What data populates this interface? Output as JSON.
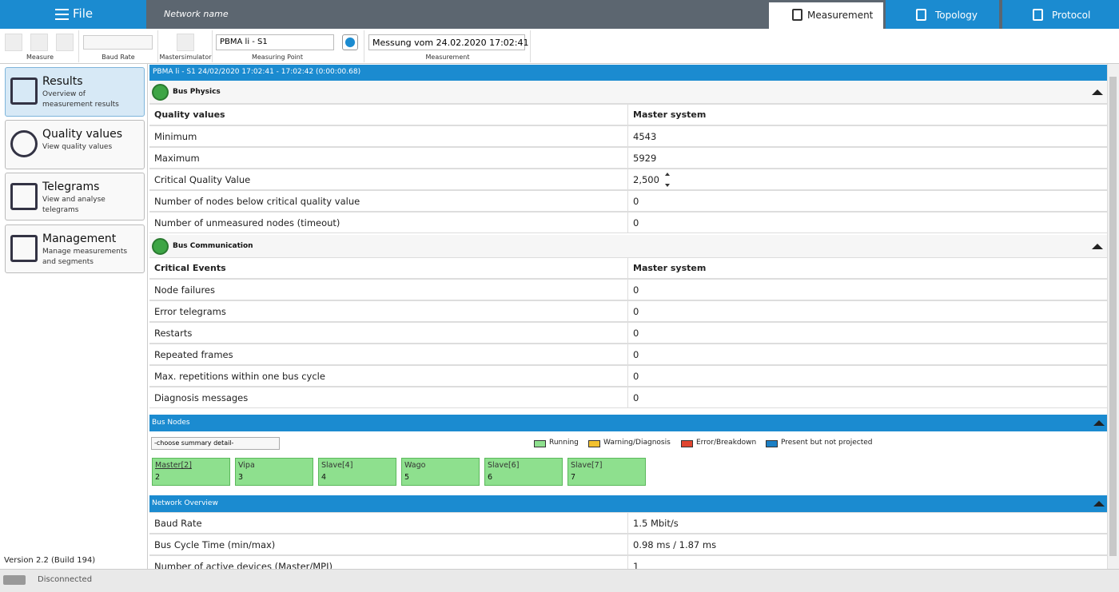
{
  "menu": {
    "file": "File",
    "network_name": "Network name"
  },
  "tabs": [
    "Measurement",
    "Topology",
    "Protocol"
  ],
  "toolbar": {
    "measure": "Measure",
    "baud_rate": "Baud Rate",
    "mastersimulator": "Mastersimulator",
    "measuring_point_value": "PBMA li - S1",
    "measuring_point": "Measuring Point",
    "measurement_value": "Messung vom 24.02.2020 17:02:41",
    "measurement": "Measurement"
  },
  "sidebar": {
    "items": [
      {
        "title": "Results",
        "subtitle": "Overview of measurement results"
      },
      {
        "title": "Quality values",
        "subtitle": "View quality values"
      },
      {
        "title": "Telegrams",
        "subtitle": "View and analyse telegrams"
      },
      {
        "title": "Management",
        "subtitle": "Manage measurements and segments"
      }
    ],
    "version": "Version 2.2 (Build 194)"
  },
  "status": "Disconnected",
  "content": {
    "header": "PBMA li - S1 24/02/2020 17:02:41 - 17:02:42 (0:00:00.68)",
    "bus_physics": {
      "title": "Bus Physics",
      "columns": [
        "Quality values",
        "Master system"
      ],
      "rows": [
        [
          "Minimum",
          "4543"
        ],
        [
          "Maximum",
          "5929"
        ],
        [
          "Critical Quality Value",
          "2,500"
        ],
        [
          "Number of nodes below critical quality value",
          "0"
        ],
        [
          "Number of unmeasured nodes (timeout)",
          "0"
        ]
      ]
    },
    "bus_communication": {
      "title": "Bus Communication",
      "columns": [
        "Critical Events",
        "Master system"
      ],
      "rows": [
        [
          "Node failures",
          "0"
        ],
        [
          "Error telegrams",
          "0"
        ],
        [
          "Restarts",
          "0"
        ],
        [
          "Repeated frames",
          "0"
        ],
        [
          "Max. repetitions within one bus cycle",
          "0"
        ],
        [
          "Diagnosis messages",
          "0"
        ]
      ]
    },
    "bus_nodes": {
      "title": "Bus Nodes",
      "select": "-choose summary detail-",
      "legend": [
        {
          "label": "Running",
          "color": "#8ee08e"
        },
        {
          "label": "Warning/Diagnosis",
          "color": "#f2c12e"
        },
        {
          "label": "Error/Breakdown",
          "color": "#e0452f"
        },
        {
          "label": "Present but not projected",
          "color": "#1b7fc4"
        }
      ],
      "nodes": [
        {
          "name": "Master[2]",
          "address": "2"
        },
        {
          "name": "Vipa",
          "address": "3"
        },
        {
          "name": "Slave[4]",
          "address": "4"
        },
        {
          "name": "Wago",
          "address": "5"
        },
        {
          "name": "Slave[6]",
          "address": "6"
        },
        {
          "name": "Slave[7]",
          "address": "7"
        }
      ]
    },
    "network_overview": {
      "title": "Network Overview",
      "rows": [
        [
          "Baud Rate",
          "1.5 Mbit/s"
        ],
        [
          "Bus Cycle Time (min/max)",
          "0.98 ms / 1.87 ms"
        ],
        [
          "Number of active devices (Master/MPI)",
          "1"
        ]
      ]
    }
  }
}
